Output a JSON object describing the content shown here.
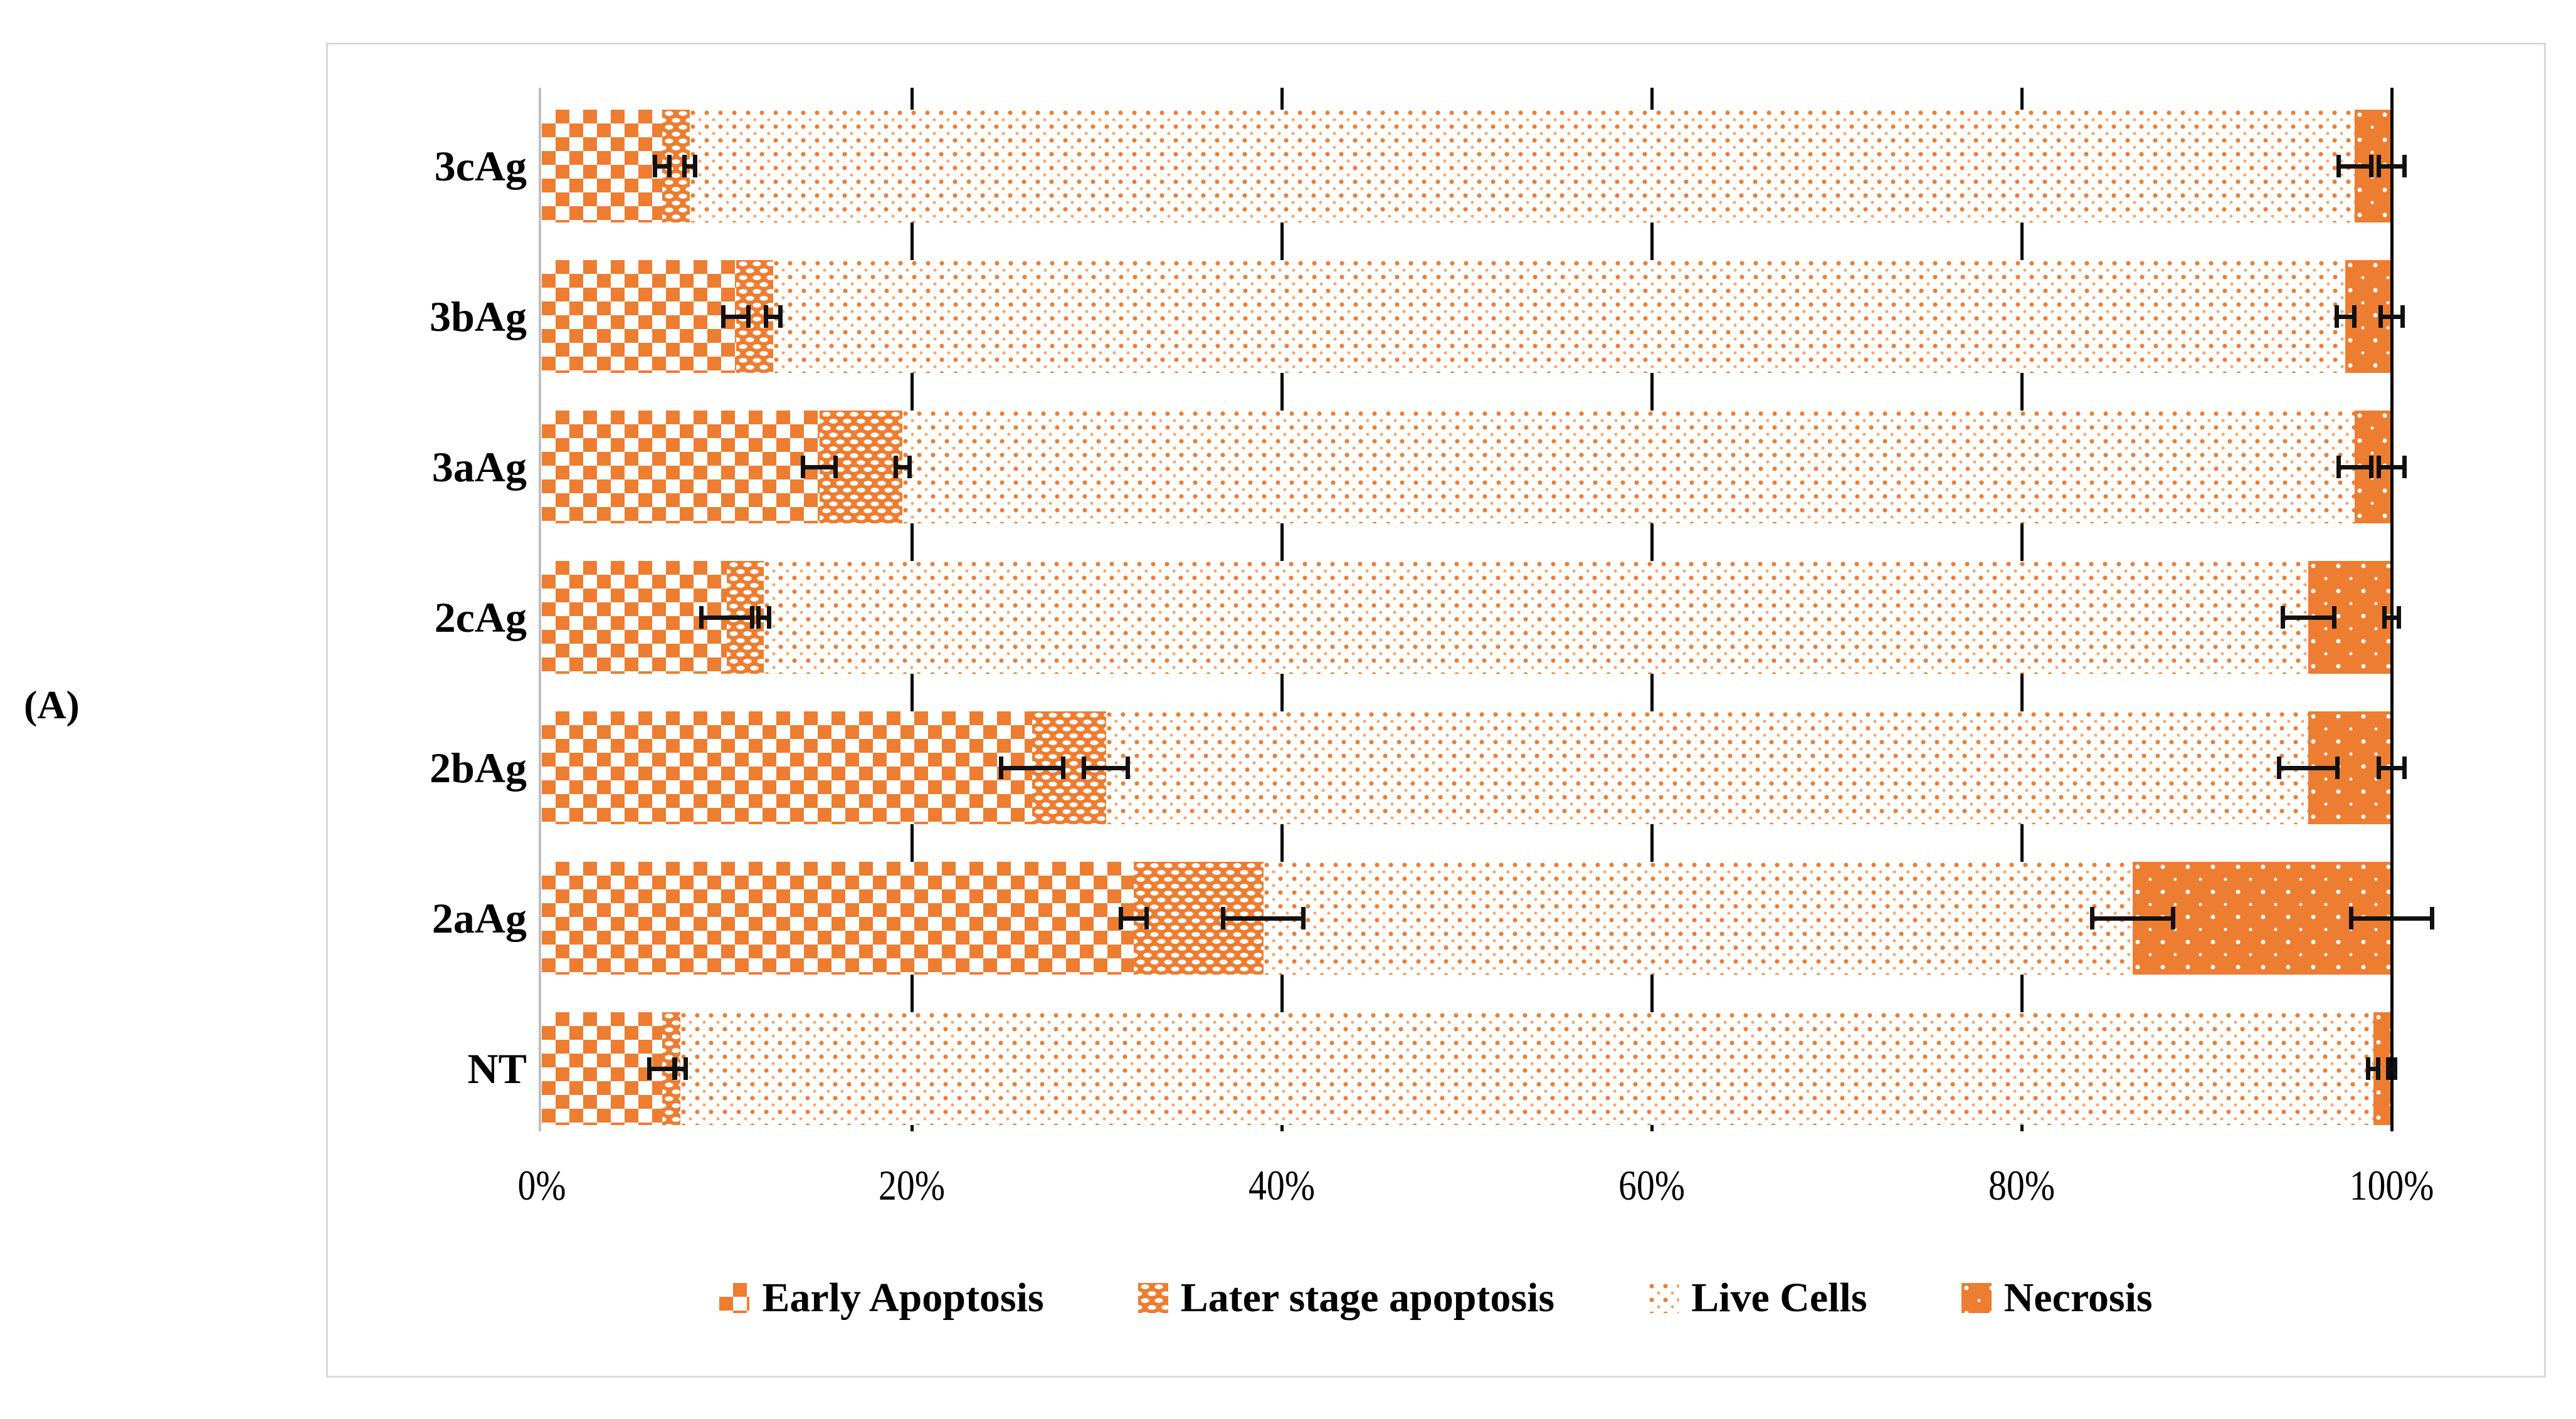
{
  "panel_label": "(A)",
  "accent_color": "#ED7D31",
  "gridline_color": "#000000",
  "axis_line_color": "#BFBFBF",
  "border_color": "#D9D9D9",
  "legend": [
    {
      "label": "Early Apoptosis",
      "key": "early"
    },
    {
      "label": "Later stage apoptosis",
      "key": "later"
    },
    {
      "label": "Live Cells",
      "key": "live"
    },
    {
      "label": "Necrosis",
      "key": "necrosis"
    }
  ],
  "chart_data": {
    "type": "bar",
    "orientation": "horizontal",
    "stacked": true,
    "percent_stacked": true,
    "title": "",
    "xlabel": "",
    "ylabel": "",
    "xlim": [
      0,
      100
    ],
    "x_tick_labels": [
      "0%",
      "20%",
      "40%",
      "60%",
      "80%",
      "100%"
    ],
    "x_tick_values": [
      0,
      20,
      40,
      60,
      80,
      100
    ],
    "grid": "vertical-black-ticks-between-bars",
    "legend_position": "bottom",
    "categories": [
      "3cAg",
      "3bAg",
      "3aAg",
      "2cAg",
      "2bAg",
      "2aAg",
      "NT"
    ],
    "series": [
      {
        "name": "Early Apoptosis",
        "key": "early",
        "values": [
          6.5,
          10.5,
          15.0,
          10.0,
          26.5,
          32.0,
          6.5
        ],
        "errors": [
          0.5,
          0.8,
          1.0,
          1.5,
          1.8,
          0.8,
          0.8
        ]
      },
      {
        "name": "Later stage apoptosis",
        "key": "later",
        "values": [
          1.5,
          2.0,
          4.5,
          2.0,
          4.0,
          7.0,
          1.0
        ],
        "errors": [
          0.4,
          0.5,
          0.5,
          0.4,
          1.3,
          2.3,
          0.4
        ]
      },
      {
        "name": "Live Cells",
        "key": "live",
        "values": [
          90.0,
          85.0,
          78.5,
          83.5,
          65.0,
          47.0,
          91.5
        ],
        "errors": [
          1.0,
          0.6,
          1.0,
          1.5,
          1.7,
          2.3,
          0.4
        ]
      },
      {
        "name": "Necrosis",
        "key": "necrosis",
        "values": [
          2.0,
          2.5,
          2.0,
          4.5,
          4.5,
          14.0,
          1.0
        ],
        "errors": [
          0.8,
          0.7,
          0.8,
          0.5,
          0.8,
          2.3,
          0.3
        ]
      }
    ]
  }
}
